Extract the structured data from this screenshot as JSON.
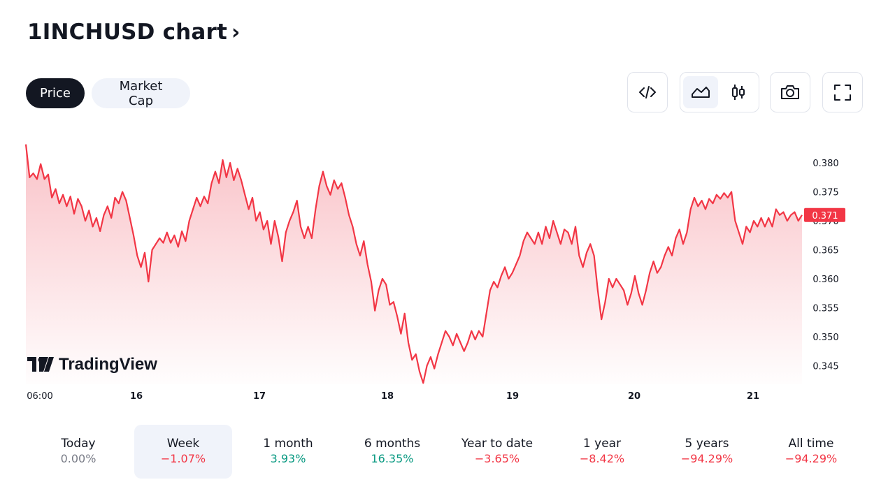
{
  "header": {
    "title": "1INCHUSD chart",
    "chevron": "›"
  },
  "tabs": {
    "price": "Price",
    "market_cap": "Market Cap"
  },
  "toolbar": {
    "embed_icon": "code-icon",
    "area_icon": "area-chart-icon",
    "candles_icon": "candlestick-icon",
    "snapshot_icon": "camera-icon",
    "fullscreen_icon": "fullscreen-icon"
  },
  "watermark": "TradingView",
  "colors": {
    "line": "#f23645",
    "fill": "#f7a8b0",
    "positive": "#089981",
    "negative": "#f23645",
    "badge": "#f23645"
  },
  "chart_data": {
    "type": "area",
    "x_tick_labels": [
      "06:00",
      "16",
      "17",
      "18",
      "19",
      "20",
      "21"
    ],
    "y_tick_labels": [
      "0.380",
      "0.375",
      "0.370",
      "0.365",
      "0.360",
      "0.355",
      "0.350",
      "0.345"
    ],
    "y_ticks": [
      0.38,
      0.375,
      0.37,
      0.365,
      0.36,
      0.355,
      0.35,
      0.345
    ],
    "ylim": [
      0.3418,
      0.3852
    ],
    "last_price_label": "0.371",
    "last_price": 0.371,
    "series": [
      {
        "values": [
          0.3832,
          0.3775,
          0.3782,
          0.3772,
          0.3798,
          0.3772,
          0.378,
          0.374,
          0.3755,
          0.373,
          0.3745,
          0.3725,
          0.3742,
          0.3712,
          0.3738,
          0.3725,
          0.37,
          0.3718,
          0.369,
          0.3705,
          0.3682,
          0.371,
          0.3725,
          0.3705,
          0.374,
          0.373,
          0.375,
          0.3735,
          0.3705,
          0.3675,
          0.364,
          0.362,
          0.3645,
          0.3595,
          0.365,
          0.366,
          0.367,
          0.3662,
          0.368,
          0.3662,
          0.3675,
          0.3655,
          0.3682,
          0.3665,
          0.37,
          0.372,
          0.374,
          0.3725,
          0.3742,
          0.373,
          0.3765,
          0.3785,
          0.3765,
          0.3805,
          0.3775,
          0.38,
          0.377,
          0.379,
          0.377,
          0.3745,
          0.372,
          0.374,
          0.37,
          0.3715,
          0.3685,
          0.37,
          0.366,
          0.37,
          0.3672,
          0.363,
          0.368,
          0.37,
          0.3715,
          0.3735,
          0.369,
          0.367,
          0.369,
          0.367,
          0.372,
          0.376,
          0.3785,
          0.376,
          0.3745,
          0.377,
          0.3755,
          0.3765,
          0.374,
          0.371,
          0.369,
          0.366,
          0.364,
          0.3665,
          0.3625,
          0.3595,
          0.3545,
          0.358,
          0.36,
          0.359,
          0.3555,
          0.356,
          0.3535,
          0.3505,
          0.354,
          0.349,
          0.346,
          0.347,
          0.344,
          0.342,
          0.345,
          0.3465,
          0.3445,
          0.347,
          0.349,
          0.351,
          0.35,
          0.3485,
          0.3505,
          0.349,
          0.3475,
          0.349,
          0.351,
          0.3495,
          0.351,
          0.35,
          0.354,
          0.358,
          0.3595,
          0.3585,
          0.3605,
          0.362,
          0.36,
          0.361,
          0.3625,
          0.364,
          0.3665,
          0.368,
          0.367,
          0.366,
          0.368,
          0.366,
          0.369,
          0.367,
          0.37,
          0.368,
          0.366,
          0.3685,
          0.368,
          0.366,
          0.369,
          0.364,
          0.362,
          0.3645,
          0.366,
          0.364,
          0.358,
          0.353,
          0.356,
          0.36,
          0.3585,
          0.36,
          0.359,
          0.358,
          0.3555,
          0.3575,
          0.3605,
          0.3575,
          0.3555,
          0.358,
          0.361,
          0.363,
          0.361,
          0.362,
          0.364,
          0.3655,
          0.364,
          0.367,
          0.3685,
          0.366,
          0.368,
          0.372,
          0.374,
          0.3725,
          0.3735,
          0.372,
          0.3738,
          0.373,
          0.3745,
          0.3738,
          0.3748,
          0.374,
          0.375,
          0.37,
          0.368,
          0.366,
          0.369,
          0.368,
          0.37,
          0.369,
          0.3705,
          0.369,
          0.3705,
          0.369,
          0.372,
          0.371,
          0.3715,
          0.37,
          0.371,
          0.3715,
          0.37,
          0.371
        ]
      }
    ]
  },
  "periods": [
    {
      "label": "Today",
      "change": "0.00%",
      "trend": "neutral"
    },
    {
      "label": "Week",
      "change": "−1.07%",
      "trend": "negative"
    },
    {
      "label": "1 month",
      "change": "3.93%",
      "trend": "positive"
    },
    {
      "label": "6 months",
      "change": "16.35%",
      "trend": "positive"
    },
    {
      "label": "Year to date",
      "change": "−3.65%",
      "trend": "negative"
    },
    {
      "label": "1 year",
      "change": "−8.42%",
      "trend": "negative"
    },
    {
      "label": "5 years",
      "change": "−94.29%",
      "trend": "negative"
    },
    {
      "label": "All time",
      "change": "−94.29%",
      "trend": "negative"
    }
  ],
  "selected_period": "Week"
}
